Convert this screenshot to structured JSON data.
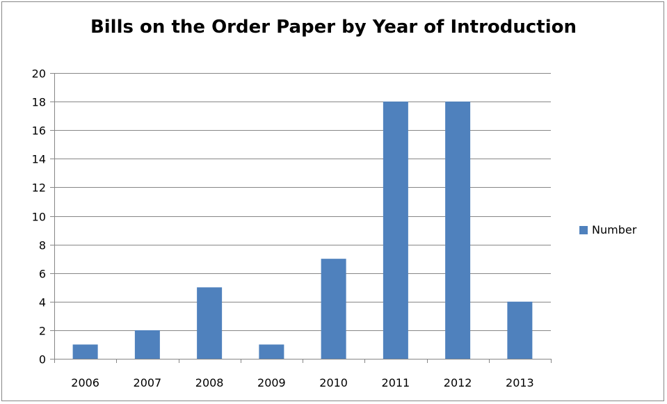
{
  "chart_data": {
    "type": "bar",
    "title": "Bills on the Order Paper by Year of Introduction",
    "xlabel": "",
    "ylabel": "",
    "categories": [
      "2006",
      "2007",
      "2008",
      "2009",
      "2010",
      "2011",
      "2012",
      "2013"
    ],
    "series": [
      {
        "name": "Number",
        "values": [
          1,
          2,
          5,
          1,
          7,
          18,
          18,
          4
        ],
        "color": "#4F81BD"
      }
    ],
    "ylim": [
      0,
      20
    ],
    "yticks": [
      0,
      2,
      4,
      6,
      8,
      10,
      12,
      14,
      16,
      18,
      20
    ],
    "grid": true,
    "legend_position": "right"
  }
}
